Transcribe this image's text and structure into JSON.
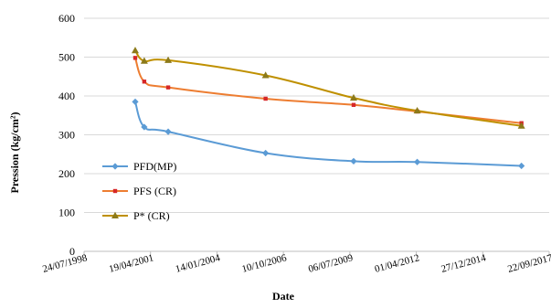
{
  "chart_data": {
    "type": "line",
    "title": "",
    "xlabel": "Date",
    "ylabel": "Pression (kg/cm²)",
    "ylim": [
      0,
      600
    ],
    "yticks": [
      0,
      100,
      200,
      300,
      400,
      500,
      600
    ],
    "xlim": [
      "1998-07-24",
      "2017-09-22"
    ],
    "xticks": [
      "1998-07-24",
      "2001-04-19",
      "2004-01-14",
      "2006-10-10",
      "2009-07-06",
      "2012-04-01",
      "2014-12-27",
      "2017-09-22"
    ],
    "xtick_labels": [
      "24/07/1998",
      "19/04/2001",
      "14/01/2004",
      "10/10/2006",
      "06/07/2009",
      "01/04/2012",
      "27/12/2014",
      "22/09/2017"
    ],
    "grid": "horizontal",
    "legend_position": "left-center",
    "series": [
      {
        "name": "PFD(MP)",
        "color": "#5B9BD5",
        "marker": "diamond",
        "points": [
          {
            "x": "2000-09-01",
            "y": 385
          },
          {
            "x": "2001-01-15",
            "y": 320
          },
          {
            "x": "2002-01-10",
            "y": 308
          },
          {
            "x": "2006-01-15",
            "y": 253
          },
          {
            "x": "2009-09-01",
            "y": 232
          },
          {
            "x": "2012-04-15",
            "y": 230
          },
          {
            "x": "2016-08-01",
            "y": 220
          }
        ]
      },
      {
        "name": "PFS (CR)",
        "color": "#ED7D31",
        "marker": "square",
        "points": [
          {
            "x": "2000-09-01",
            "y": 498
          },
          {
            "x": "2001-01-15",
            "y": 437
          },
          {
            "x": "2002-01-10",
            "y": 422
          },
          {
            "x": "2006-01-15",
            "y": 393
          },
          {
            "x": "2009-09-01",
            "y": 377
          },
          {
            "x": "2012-04-15",
            "y": 360
          },
          {
            "x": "2016-08-01",
            "y": 330
          }
        ]
      },
      {
        "name": "P* (CR)",
        "color": "#BF9000",
        "marker": "triangle",
        "points": [
          {
            "x": "2000-09-01",
            "y": 517
          },
          {
            "x": "2001-01-15",
            "y": 490
          },
          {
            "x": "2002-01-10",
            "y": 492
          },
          {
            "x": "2006-01-15",
            "y": 453
          },
          {
            "x": "2009-09-01",
            "y": 395
          },
          {
            "x": "2012-04-15",
            "y": 362
          },
          {
            "x": "2016-08-01",
            "y": 323
          }
        ]
      }
    ]
  }
}
